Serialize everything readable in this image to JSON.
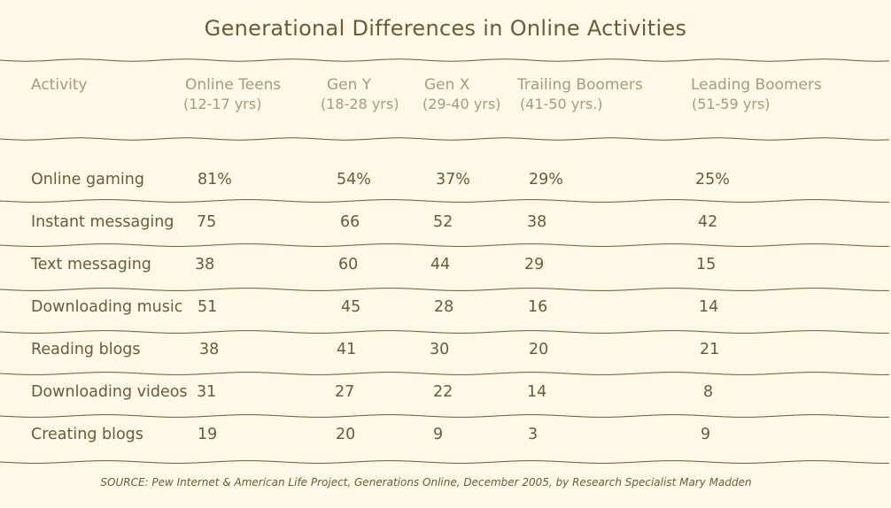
{
  "chart_data": {
    "type": "table",
    "title": "Generational Differences in Online Activities",
    "columns": [
      {
        "label": "Activity",
        "sub": ""
      },
      {
        "label": "Online Teens",
        "sub": "(12-17 yrs)"
      },
      {
        "label": "Gen Y",
        "sub": "(18-28 yrs)"
      },
      {
        "label": "Gen X",
        "sub": "(29-40 yrs)"
      },
      {
        "label": "Trailing Boomers",
        "sub": "(41-50 yrs.)"
      },
      {
        "label": "Leading Boomers",
        "sub": "(51-59 yrs)"
      }
    ],
    "rows": [
      {
        "activity": "Online gaming",
        "values": [
          "81%",
          "54%",
          "37%",
          "29%",
          "25%"
        ]
      },
      {
        "activity": "Instant messaging",
        "values": [
          "75",
          "66",
          "52",
          "38",
          "42"
        ]
      },
      {
        "activity": "Text messaging",
        "values": [
          "38",
          "60",
          "44",
          "29",
          "15"
        ]
      },
      {
        "activity": "Downloading music",
        "values": [
          "51",
          "45",
          "28",
          "16",
          "14"
        ]
      },
      {
        "activity": "Reading blogs",
        "values": [
          "38",
          "41",
          "30",
          "20",
          "21"
        ]
      },
      {
        "activity": "Downloading videos",
        "values": [
          "31",
          "27",
          "22",
          "14",
          "8"
        ]
      },
      {
        "activity": "Creating blogs",
        "values": [
          "19",
          "20",
          "9",
          "3",
          "9"
        ]
      }
    ],
    "source": "SOURCE: Pew Internet & American Life Project, Generations Online, December 2005, by Research Specialist Mary Madden"
  }
}
